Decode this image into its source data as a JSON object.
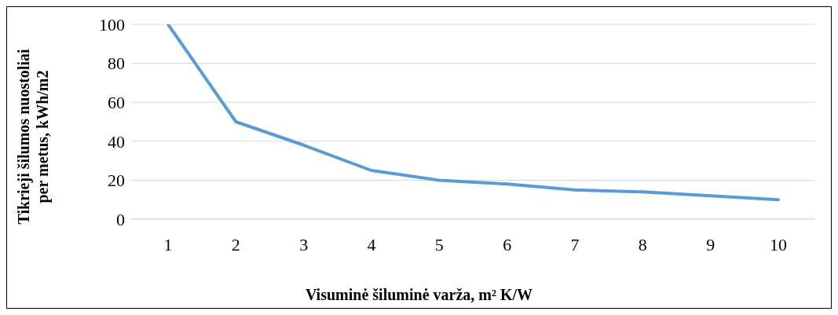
{
  "chart_data": {
    "type": "line",
    "xlabel": "Visuminė šiluminė varža, m² K/W",
    "ylabel": "Tikrieji šilumos nuostoliai per metus, kWh/m2",
    "categories": [
      "1",
      "2",
      "3",
      "4",
      "5",
      "6",
      "7",
      "8",
      "9",
      "10"
    ],
    "series": [
      {
        "color": "#5b9bd5",
        "values": [
          100,
          50,
          38,
          25,
          20,
          18,
          15,
          14,
          12,
          10
        ]
      }
    ],
    "ylim": [
      0,
      100
    ],
    "yticks": [
      0,
      20,
      40,
      60,
      80,
      100
    ],
    "grid": "y",
    "marker": "none",
    "line_style": "solid"
  }
}
